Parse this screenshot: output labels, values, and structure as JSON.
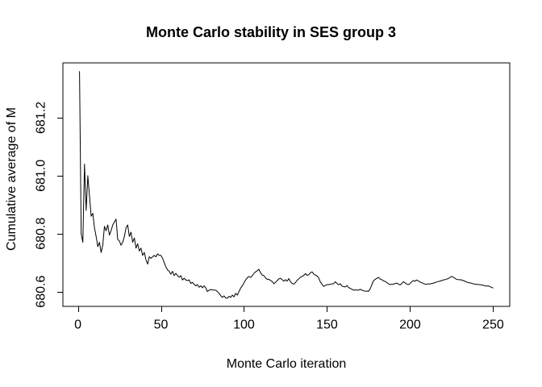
{
  "chart_data": {
    "type": "line",
    "title": "Monte Carlo stability in SES group 3",
    "xlabel": "Monte Carlo iteration",
    "ylabel": "Cumulative average of M",
    "grid": false,
    "legend": null,
    "line_color": "#000000",
    "background_color": "#ffffff",
    "x_ticks": [
      0,
      50,
      100,
      150,
      200,
      250
    ],
    "x_tick_labels": [
      "0",
      "50",
      "100",
      "150",
      "200",
      "250"
    ],
    "y_ticks": [
      680.6,
      680.8,
      681.0,
      681.2
    ],
    "y_tick_labels": [
      "680.6",
      "680.8",
      "681.0",
      "681.2"
    ],
    "xlim": [
      -9,
      260
    ],
    "ylim": [
      680.549,
      681.389
    ],
    "series": [
      {
        "name": "cumulative-average-of-M",
        "x_start": 1,
        "x_step": 1,
        "values": [
          681.36,
          680.8,
          680.77,
          681.04,
          680.88,
          681.0,
          680.93,
          680.86,
          680.87,
          680.82,
          680.79,
          680.755,
          680.77,
          680.735,
          680.76,
          680.825,
          680.81,
          680.83,
          680.795,
          680.81,
          680.83,
          680.84,
          680.85,
          680.78,
          680.775,
          680.76,
          680.77,
          680.79,
          680.82,
          680.83,
          680.79,
          680.805,
          680.77,
          680.785,
          680.75,
          680.765,
          680.74,
          680.75,
          680.725,
          680.735,
          680.71,
          680.695,
          680.72,
          680.715,
          680.72,
          680.725,
          680.72,
          680.73,
          680.725,
          680.725,
          680.715,
          680.7,
          680.685,
          680.675,
          680.67,
          680.66,
          680.67,
          680.655,
          680.663,
          680.655,
          680.65,
          680.655,
          680.64,
          680.646,
          680.64,
          680.638,
          680.64,
          680.628,
          680.632,
          680.625,
          680.62,
          680.624,
          680.615,
          680.62,
          680.613,
          680.62,
          680.613,
          680.6,
          680.605,
          680.607,
          680.606,
          680.605,
          680.605,
          680.6,
          680.594,
          680.586,
          680.58,
          680.585,
          680.578,
          680.577,
          680.584,
          680.58,
          680.588,
          680.582,
          680.594,
          680.588,
          680.6,
          680.612,
          680.62,
          680.63,
          680.64,
          680.648,
          680.652,
          680.649,
          680.655,
          680.663,
          680.668,
          680.672,
          680.677,
          680.665,
          680.657,
          680.655,
          680.647,
          680.642,
          680.643,
          680.638,
          680.635,
          680.627,
          680.632,
          680.638,
          680.644,
          680.646,
          680.641,
          680.636,
          680.641,
          680.636,
          680.645,
          680.634,
          680.628,
          680.626,
          680.631,
          680.639,
          680.644,
          680.65,
          680.652,
          680.656,
          680.662,
          680.656,
          680.658,
          680.665,
          680.668,
          680.661,
          680.657,
          680.654,
          680.647,
          680.633,
          680.625,
          680.618,
          680.621,
          680.624,
          680.624,
          680.625,
          680.627,
          680.627,
          680.634,
          680.628,
          680.624,
          680.627,
          680.619,
          680.617,
          680.616,
          680.621,
          680.614,
          680.611,
          680.608,
          680.605,
          680.606,
          680.605,
          680.605,
          680.608,
          680.605,
          680.603,
          680.601,
          680.602,
          680.601,
          680.61,
          680.624,
          680.638,
          680.642,
          680.646,
          680.649,
          680.643,
          680.641,
          680.637,
          680.635,
          680.631,
          680.627,
          680.624,
          680.626,
          680.625,
          680.628,
          680.629,
          680.626,
          680.623,
          680.628,
          680.634,
          680.63,
          680.626,
          680.624,
          680.628,
          680.634,
          680.638,
          680.636,
          680.64,
          680.637,
          680.633,
          680.631,
          680.628,
          680.626,
          680.625,
          680.627,
          680.626,
          680.628,
          680.629,
          680.631,
          680.633,
          680.635,
          680.636,
          680.638,
          680.64,
          680.641,
          680.643,
          680.645,
          680.649,
          680.652,
          680.65,
          680.646,
          680.642,
          680.641,
          680.641,
          680.64,
          680.638,
          680.636,
          680.633,
          680.631,
          680.63,
          680.629,
          680.627,
          680.626,
          680.625,
          680.624,
          680.624,
          680.623,
          680.622,
          680.62,
          680.619,
          680.62,
          680.617,
          680.615,
          680.612
        ]
      }
    ]
  }
}
